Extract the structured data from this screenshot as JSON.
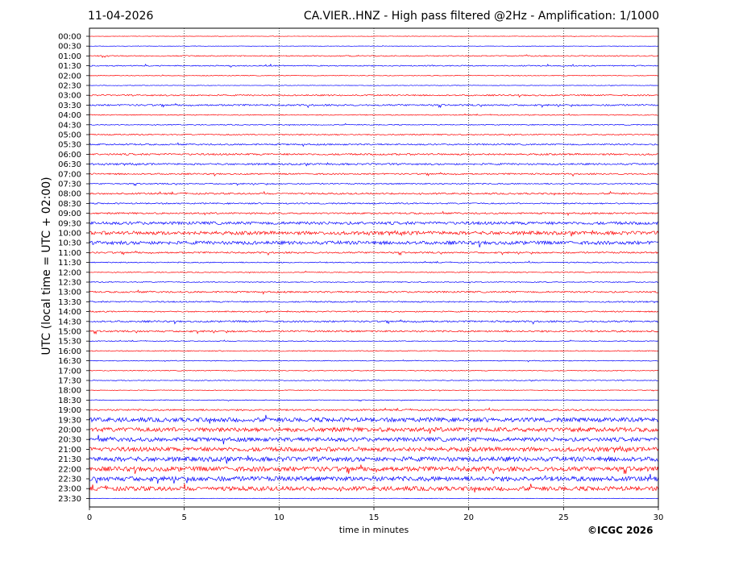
{
  "header": {
    "date": "11-04-2026",
    "title": "CA.VIER..HNZ - High pass filtered @2Hz - Amplification: 1/1000"
  },
  "footer": {
    "copyright": "©ICGC 2026"
  },
  "chart_data": {
    "type": "line",
    "title": "CA.VIER..HNZ - High pass filtered @2Hz - Amplification: 1/1000",
    "xlabel": "time in minutes",
    "ylabel": "UTC (local time = UTC + 02:00)",
    "xlim": [
      0,
      30
    ],
    "x_ticks": [
      0,
      5,
      10,
      15,
      20,
      25,
      30
    ],
    "grid": "vertical dotted at x ticks",
    "series_colors": [
      "#ff0000",
      "#0000ff"
    ],
    "rows": [
      {
        "label": "00:00",
        "color": "#ff0000",
        "level": 0.3
      },
      {
        "label": "00:30",
        "color": "#0000ff",
        "level": 0.3
      },
      {
        "label": "01:00",
        "color": "#ff0000",
        "level": 0.8
      },
      {
        "label": "01:30",
        "color": "#0000ff",
        "level": 0.8
      },
      {
        "label": "02:00",
        "color": "#ff0000",
        "level": 0.5
      },
      {
        "label": "02:30",
        "color": "#0000ff",
        "level": 0.4
      },
      {
        "label": "03:00",
        "color": "#ff0000",
        "level": 1.0
      },
      {
        "label": "03:30",
        "color": "#0000ff",
        "level": 1.2
      },
      {
        "label": "04:00",
        "color": "#ff0000",
        "level": 0.7
      },
      {
        "label": "04:30",
        "color": "#0000ff",
        "level": 0.7
      },
      {
        "label": "05:00",
        "color": "#ff0000",
        "level": 0.9
      },
      {
        "label": "05:30",
        "color": "#0000ff",
        "level": 1.1
      },
      {
        "label": "06:00",
        "color": "#ff0000",
        "level": 1.3
      },
      {
        "label": "06:30",
        "color": "#0000ff",
        "level": 1.3
      },
      {
        "label": "07:00",
        "color": "#ff0000",
        "level": 1.1
      },
      {
        "label": "07:30",
        "color": "#0000ff",
        "level": 0.9
      },
      {
        "label": "08:00",
        "color": "#ff0000",
        "level": 1.2
      },
      {
        "label": "08:30",
        "color": "#0000ff",
        "level": 1.0
      },
      {
        "label": "09:00",
        "color": "#ff0000",
        "level": 1.2
      },
      {
        "label": "09:30",
        "color": "#0000ff",
        "level": 2.2
      },
      {
        "label": "10:00",
        "color": "#ff0000",
        "level": 2.6
      },
      {
        "label": "10:30",
        "color": "#0000ff",
        "level": 2.6
      },
      {
        "label": "11:00",
        "color": "#ff0000",
        "level": 1.2
      },
      {
        "label": "11:30",
        "color": "#0000ff",
        "level": 0.8
      },
      {
        "label": "12:00",
        "color": "#ff0000",
        "level": 0.7
      },
      {
        "label": "12:30",
        "color": "#0000ff",
        "level": 0.7
      },
      {
        "label": "13:00",
        "color": "#ff0000",
        "level": 1.2
      },
      {
        "label": "13:30",
        "color": "#0000ff",
        "level": 1.0
      },
      {
        "label": "14:00",
        "color": "#ff0000",
        "level": 0.9
      },
      {
        "label": "14:30",
        "color": "#0000ff",
        "level": 1.3
      },
      {
        "label": "15:00",
        "color": "#ff0000",
        "level": 1.3
      },
      {
        "label": "15:30",
        "color": "#0000ff",
        "level": 0.6
      },
      {
        "label": "16:00",
        "color": "#ff0000",
        "level": 0.7
      },
      {
        "label": "16:30",
        "color": "#0000ff",
        "level": 0.6
      },
      {
        "label": "17:00",
        "color": "#ff0000",
        "level": 0.6
      },
      {
        "label": "17:30",
        "color": "#0000ff",
        "level": 0.6
      },
      {
        "label": "18:00",
        "color": "#ff0000",
        "level": 0.5
      },
      {
        "label": "18:30",
        "color": "#0000ff",
        "level": 0.5
      },
      {
        "label": "19:00",
        "color": "#ff0000",
        "level": 1.2
      },
      {
        "label": "19:30",
        "color": "#0000ff",
        "level": 3.2
      },
      {
        "label": "20:00",
        "color": "#ff0000",
        "level": 3.2
      },
      {
        "label": "20:30",
        "color": "#0000ff",
        "level": 3.0
      },
      {
        "label": "21:00",
        "color": "#ff0000",
        "level": 3.2
      },
      {
        "label": "21:30",
        "color": "#0000ff",
        "level": 3.5
      },
      {
        "label": "22:00",
        "color": "#ff0000",
        "level": 3.5
      },
      {
        "label": "22:30",
        "color": "#0000ff",
        "level": 3.5
      },
      {
        "label": "23:00",
        "color": "#ff0000",
        "level": 3.2
      },
      {
        "label": "23:30",
        "color": "#0000ff",
        "level": 0.3
      }
    ]
  }
}
